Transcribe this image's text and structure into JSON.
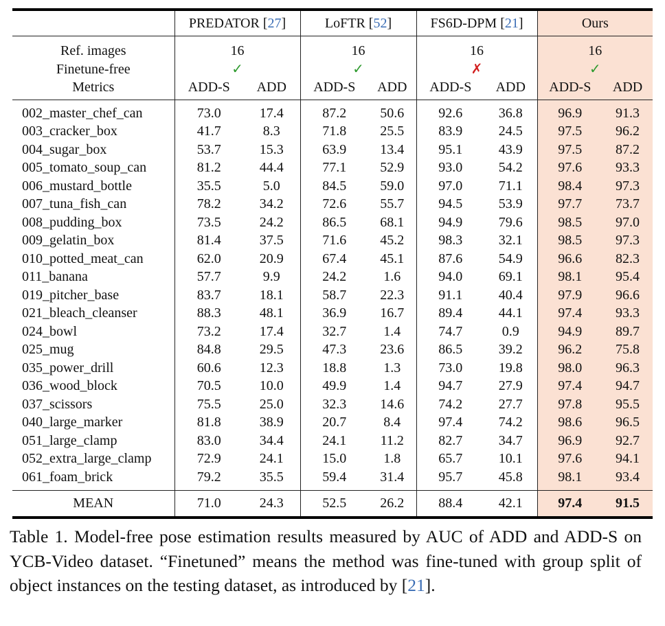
{
  "table": {
    "methods": [
      {
        "name": "PREDATOR [",
        "ref": "27",
        "close": "]"
      },
      {
        "name": "LoFTR [",
        "ref": "52",
        "close": "]"
      },
      {
        "name": "FS6D-DPM [",
        "ref": "21",
        "close": "]"
      },
      {
        "name": "Ours"
      }
    ],
    "rows_labels": {
      "ref_images": "Ref. images",
      "finetune_free": "Finetune-free",
      "metrics": "Metrics"
    },
    "ref_images": [
      "16",
      "16",
      "16",
      "16"
    ],
    "finetune_free": [
      "✓",
      "✓",
      "✗",
      "✓"
    ],
    "metric_add_s": "ADD-S",
    "metric_add": "ADD",
    "objects": [
      {
        "name": "002_master_chef_can",
        "v": [
          "73.0",
          "17.4",
          "87.2",
          "50.6",
          "92.6",
          "36.8",
          "96.9",
          "91.3"
        ]
      },
      {
        "name": "003_cracker_box",
        "v": [
          "41.7",
          "8.3",
          "71.8",
          "25.5",
          "83.9",
          "24.5",
          "97.5",
          "96.2"
        ]
      },
      {
        "name": "004_sugar_box",
        "v": [
          "53.7",
          "15.3",
          "63.9",
          "13.4",
          "95.1",
          "43.9",
          "97.5",
          "87.2"
        ]
      },
      {
        "name": "005_tomato_soup_can",
        "v": [
          "81.2",
          "44.4",
          "77.1",
          "52.9",
          "93.0",
          "54.2",
          "97.6",
          "93.3"
        ]
      },
      {
        "name": "006_mustard_bottle",
        "v": [
          "35.5",
          "5.0",
          "84.5",
          "59.0",
          "97.0",
          "71.1",
          "98.4",
          "97.3"
        ]
      },
      {
        "name": "007_tuna_fish_can",
        "v": [
          "78.2",
          "34.2",
          "72.6",
          "55.7",
          "94.5",
          "53.9",
          "97.7",
          "73.7"
        ]
      },
      {
        "name": "008_pudding_box",
        "v": [
          "73.5",
          "24.2",
          "86.5",
          "68.1",
          "94.9",
          "79.6",
          "98.5",
          "97.0"
        ]
      },
      {
        "name": "009_gelatin_box",
        "v": [
          "81.4",
          "37.5",
          "71.6",
          "45.2",
          "98.3",
          "32.1",
          "98.5",
          "97.3"
        ]
      },
      {
        "name": "010_potted_meat_can",
        "v": [
          "62.0",
          "20.9",
          "67.4",
          "45.1",
          "87.6",
          "54.9",
          "96.6",
          "82.3"
        ]
      },
      {
        "name": "011_banana",
        "v": [
          "57.7",
          "9.9",
          "24.2",
          "1.6",
          "94.0",
          "69.1",
          "98.1",
          "95.4"
        ]
      },
      {
        "name": "019_pitcher_base",
        "v": [
          "83.7",
          "18.1",
          "58.7",
          "22.3",
          "91.1",
          "40.4",
          "97.9",
          "96.6"
        ]
      },
      {
        "name": "021_bleach_cleanser",
        "v": [
          "88.3",
          "48.1",
          "36.9",
          "16.7",
          "89.4",
          "44.1",
          "97.4",
          "93.3"
        ]
      },
      {
        "name": "024_bowl",
        "v": [
          "73.2",
          "17.4",
          "32.7",
          "1.4",
          "74.7",
          "0.9",
          "94.9",
          "89.7"
        ]
      },
      {
        "name": "025_mug",
        "v": [
          "84.8",
          "29.5",
          "47.3",
          "23.6",
          "86.5",
          "39.2",
          "96.2",
          "75.8"
        ]
      },
      {
        "name": "035_power_drill",
        "v": [
          "60.6",
          "12.3",
          "18.8",
          "1.3",
          "73.0",
          "19.8",
          "98.0",
          "96.3"
        ]
      },
      {
        "name": "036_wood_block",
        "v": [
          "70.5",
          "10.0",
          "49.9",
          "1.4",
          "94.7",
          "27.9",
          "97.4",
          "94.7"
        ]
      },
      {
        "name": "037_scissors",
        "v": [
          "75.5",
          "25.0",
          "32.3",
          "14.6",
          "74.2",
          "27.7",
          "97.8",
          "95.5"
        ]
      },
      {
        "name": "040_large_marker",
        "v": [
          "81.8",
          "38.9",
          "20.7",
          "8.4",
          "97.4",
          "74.2",
          "98.6",
          "96.5"
        ]
      },
      {
        "name": "051_large_clamp",
        "v": [
          "83.0",
          "34.4",
          "24.1",
          "11.2",
          "82.7",
          "34.7",
          "96.9",
          "92.7"
        ]
      },
      {
        "name": "052_extra_large_clamp",
        "v": [
          "72.9",
          "24.1",
          "15.0",
          "1.8",
          "65.7",
          "10.1",
          "97.6",
          "94.1"
        ]
      },
      {
        "name": "061_foam_brick",
        "v": [
          "79.2",
          "35.5",
          "59.4",
          "31.4",
          "95.7",
          "45.8",
          "98.1",
          "93.4"
        ]
      }
    ],
    "mean": {
      "label": "MEAN",
      "v": [
        "71.0",
        "24.3",
        "52.5",
        "26.2",
        "88.4",
        "42.1",
        "97.4",
        "91.5"
      ]
    }
  },
  "caption": {
    "prefix": "Table 1.  Model-free pose estimation results measured by AUC of ADD and ADD-S on YCB-Video dataset.  “Finetuned” means the method was fine-tuned with group split of object instances on the testing dataset, as introduced by [",
    "ref": "21",
    "suffix": "]."
  },
  "colors": {
    "ours_bg": "#fbe1d3",
    "ref_link": "#3a6db5",
    "check": "#2e9a2e",
    "cross": "#d21f1f"
  }
}
